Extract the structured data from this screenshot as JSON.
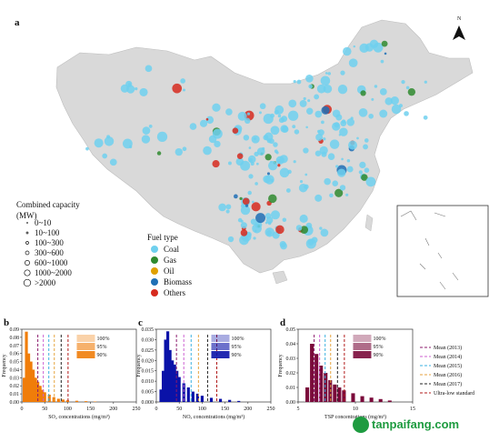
{
  "map": {
    "panel_label": "a",
    "north_label": "N",
    "capacity_legend": {
      "title": "Combined capacity",
      "unit": "(MW)",
      "items": [
        "0~10",
        "10~100",
        "100~300",
        "300~600",
        "600~1000",
        "1000~2000",
        ">2000"
      ]
    },
    "fuel_legend": {
      "title": "Fuel type",
      "items": [
        {
          "label": "Coal",
          "color": "#6fd0ee"
        },
        {
          "label": "Gas",
          "color": "#2f8a2f"
        },
        {
          "label": "Oil",
          "color": "#e0a000"
        },
        {
          "label": "Biomass",
          "color": "#1f6fb5"
        },
        {
          "label": "Others",
          "color": "#d62a1e"
        }
      ]
    },
    "land_color": "#d9d9d9"
  },
  "panels": [
    {
      "label": "b",
      "xlabel": "SO₂ concentrations (mg/m³)",
      "ylabel": "Frequency",
      "color": "#f07d0a",
      "pct": [
        "100%",
        "95%",
        "90%"
      ],
      "xticks": [
        "0",
        "50",
        "100",
        "150",
        "200",
        "250"
      ],
      "yticks": [
        "0.00",
        "0.01",
        "0.02",
        "0.03",
        "0.04",
        "0.05",
        "0.06",
        "0.07",
        "0.08",
        "0.09"
      ]
    },
    {
      "label": "c",
      "xlabel": "NOₓ concentrations  (mg/m³)",
      "ylabel": "Frequency",
      "color": "#0a12a8",
      "pct": [
        "100%",
        "95%",
        "90%"
      ],
      "xticks": [
        "0",
        "50",
        "100",
        "150",
        "200",
        "250"
      ],
      "yticks": [
        "0.000",
        "0.005",
        "0.010",
        "0.015",
        "0.020",
        "0.025",
        "0.030",
        "0.035"
      ]
    },
    {
      "label": "d",
      "xlabel": "TSP concentrations (mg/m³)",
      "ylabel": "Frequency",
      "color": "#7a0a3a",
      "pct": [
        "100%",
        "95%",
        "90%"
      ],
      "xticks": [
        "5",
        "10",
        "15"
      ],
      "yticks": [
        "0.00",
        "0.01",
        "0.02",
        "0.03",
        "0.04",
        "0.05"
      ]
    }
  ],
  "mean_legend": [
    {
      "label": "Mean (2013)",
      "color": "#8b1a6b"
    },
    {
      "label": "Mean (2014)",
      "color": "#cc5fd1"
    },
    {
      "label": "Mean (2015)",
      "color": "#3ab0e0"
    },
    {
      "label": "Mean (2016)",
      "color": "#e6a23c"
    },
    {
      "label": "Mean (2017)",
      "color": "#222222"
    },
    {
      "label": "Ultra-low standard",
      "color": "#b01a1a"
    }
  ],
  "watermark": "tanpaifang.com",
  "chart_data": [
    {
      "type": "bar",
      "title": "b",
      "xlabel": "SO₂ concentrations (mg/m³)",
      "ylabel": "Frequency",
      "xlim": [
        0,
        250
      ],
      "ylim": [
        0,
        0.09
      ],
      "x": [
        5,
        10,
        15,
        20,
        25,
        30,
        35,
        40,
        45,
        50,
        60,
        70,
        80,
        90,
        100,
        120,
        140,
        160
      ],
      "values": [
        0.03,
        0.087,
        0.06,
        0.05,
        0.04,
        0.03,
        0.025,
        0.02,
        0.015,
        0.012,
        0.009,
        0.006,
        0.004,
        0.003,
        0.002,
        0.0015,
        0.001,
        0.0005
      ]
    },
    {
      "type": "bar",
      "title": "c",
      "xlabel": "NOₓ concentrations  (mg/m³)",
      "ylabel": "Frequency",
      "xlim": [
        0,
        250
      ],
      "ylim": [
        0,
        0.035
      ],
      "x": [
        10,
        15,
        20,
        25,
        30,
        35,
        40,
        45,
        50,
        60,
        70,
        80,
        90,
        100,
        120,
        140,
        160,
        180
      ],
      "values": [
        0.006,
        0.015,
        0.03,
        0.034,
        0.025,
        0.02,
        0.018,
        0.015,
        0.012,
        0.009,
        0.007,
        0.005,
        0.004,
        0.003,
        0.002,
        0.0015,
        0.001,
        0.0005
      ]
    },
    {
      "type": "bar",
      "title": "d",
      "xlabel": "TSP concentrations (mg/m³)",
      "ylabel": "Frequency",
      "xlim": [
        0,
        25
      ],
      "ylim": [
        0,
        0.05
      ],
      "x": [
        2,
        3,
        4,
        5,
        6,
        7,
        8,
        9,
        10,
        12,
        14,
        16,
        18,
        20
      ],
      "values": [
        0.01,
        0.04,
        0.033,
        0.025,
        0.02,
        0.015,
        0.012,
        0.01,
        0.008,
        0.006,
        0.004,
        0.003,
        0.002,
        0.001
      ]
    }
  ]
}
